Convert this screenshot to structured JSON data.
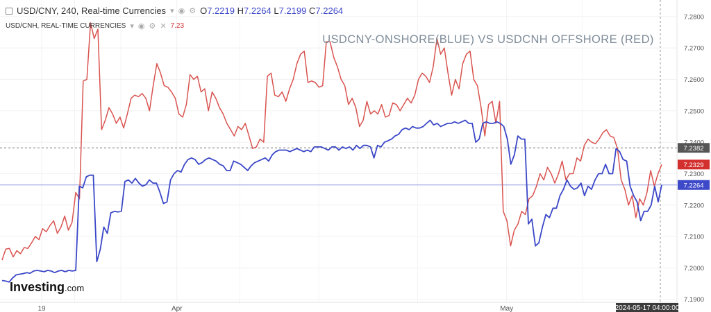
{
  "header": {
    "symbol_line": "USD/CNY, 240, Real-time Currencies",
    "ohlc": {
      "o_label": "O",
      "o": "7.2219",
      "h_label": "H",
      "h": "7.2264",
      "l_label": "L",
      "l": "7.2199",
      "c_label": "C",
      "c": "7.2264"
    },
    "overlay_label": "USD/CNH, REAL-TIME CURRENCIES",
    "overlay_value": "7.23"
  },
  "logo": {
    "brand": "Investing",
    "suffix": ".com"
  },
  "chart_data": {
    "type": "line",
    "title": "USDCNY-ONSHORE(BLUE) VS USDCNH OFFSHORE (RED)",
    "x_tick_labels": [
      {
        "label": "19",
        "pos": 0.06
      },
      {
        "label": "Apr",
        "pos": 0.265
      },
      {
        "label": "May",
        "pos": 0.765
      }
    ],
    "time_readout": "2024-05-17 04:00:00",
    "y_axis": {
      "ylim": [
        7.1895,
        7.2835
      ],
      "ticks": [
        7.19,
        7.2,
        7.21,
        7.22,
        7.23,
        7.24,
        7.25,
        7.26,
        7.27,
        7.28
      ],
      "position": "right"
    },
    "price_markers": [
      {
        "label": "7.2382",
        "value": 7.2382,
        "color": "#555555",
        "dashed": true
      },
      {
        "label": "7.2329",
        "value": 7.2329,
        "color": "#d32f2f",
        "dashed": false
      },
      {
        "label": "7.2264",
        "value": 7.2264,
        "color": "#3d49c9",
        "dashed": false
      }
    ],
    "series": [
      {
        "color": "#d9534f",
        "values": [
          7.2025,
          7.206,
          7.2062,
          7.2035,
          7.2055,
          7.2045,
          7.2065,
          7.2062,
          7.208,
          7.21,
          7.209,
          7.2125,
          7.2115,
          7.2135,
          7.215,
          7.211,
          7.213,
          7.2165,
          7.212,
          7.2145,
          7.224,
          7.222,
          7.2595,
          7.26,
          7.278,
          7.273,
          7.276,
          7.244,
          7.247,
          7.251,
          7.249,
          7.246,
          7.248,
          7.2445,
          7.249,
          7.254,
          7.255,
          7.2545,
          7.2555,
          7.254,
          7.25,
          7.258,
          7.265,
          7.262,
          7.258,
          7.2575,
          7.256,
          7.254,
          7.249,
          7.248,
          7.252,
          7.2615,
          7.26,
          7.261,
          7.256,
          7.257,
          7.25,
          7.256,
          7.254,
          7.251,
          7.249,
          7.246,
          7.244,
          7.242,
          7.245,
          7.244,
          7.246,
          7.242,
          7.238,
          7.2385,
          7.241,
          7.24,
          7.261,
          7.262,
          7.255,
          7.2545,
          7.256,
          7.253,
          7.257,
          7.26,
          7.265,
          7.268,
          7.269,
          7.259,
          7.2595,
          7.259,
          7.2575,
          7.258,
          7.272,
          7.272,
          7.267,
          7.264,
          7.26,
          7.258,
          7.252,
          7.254,
          7.251,
          7.245,
          7.247,
          7.253,
          7.249,
          7.25,
          7.249,
          7.252,
          7.248,
          7.2485,
          7.2525,
          7.252,
          7.25,
          7.252,
          7.254,
          7.2525,
          7.255,
          7.26,
          7.262,
          7.261,
          7.259,
          7.264,
          7.273,
          7.268,
          7.27,
          7.262,
          7.255,
          7.26,
          7.257,
          7.265,
          7.268,
          7.269,
          7.26,
          7.258,
          7.251,
          7.242,
          7.252,
          7.253,
          7.246,
          7.253,
          7.218,
          7.215,
          7.207,
          7.212,
          7.214,
          7.218,
          7.217,
          7.222,
          7.223,
          7.226,
          7.23,
          7.228,
          7.232,
          7.23,
          7.227,
          7.23,
          7.234,
          7.228,
          7.23,
          7.23,
          7.235,
          7.234,
          7.239,
          7.241,
          7.24,
          7.2395,
          7.241,
          7.243,
          7.244,
          7.242,
          7.2415,
          7.238,
          7.228,
          7.225,
          7.22,
          7.223,
          7.216,
          7.222,
          7.22,
          7.224,
          7.231,
          7.226,
          7.23,
          7.2329
        ]
      },
      {
        "color": "#3a47c7",
        "values": [
          7.196,
          7.1958,
          7.1955,
          7.1968,
          7.1978,
          7.198,
          7.1982,
          7.1985,
          7.1983,
          7.199,
          7.1992,
          7.199,
          7.1988,
          7.1992,
          7.199,
          7.1985,
          7.199,
          7.1992,
          7.1988,
          7.1992,
          7.199,
          7.1992,
          7.226,
          7.2255,
          7.229,
          7.2295,
          7.2295,
          7.202,
          7.206,
          7.213,
          7.211,
          7.2175,
          7.218,
          7.2178,
          7.218,
          7.2275,
          7.228,
          7.227,
          7.2285,
          7.227,
          7.226,
          7.2265,
          7.228,
          7.227,
          7.227,
          7.224,
          7.2205,
          7.221,
          7.228,
          7.23,
          7.231,
          7.2305,
          7.233,
          7.2345,
          7.235,
          7.2345,
          7.233,
          7.2335,
          7.2345,
          7.235,
          7.2345,
          7.234,
          7.233,
          7.2325,
          7.231,
          7.231,
          7.234,
          7.2335,
          7.233,
          7.232,
          7.231,
          7.2325,
          7.2335,
          7.234,
          7.2345,
          7.235,
          7.234,
          7.236,
          7.237,
          7.2375,
          7.2375,
          7.2375,
          7.237,
          7.2375,
          7.238,
          7.2375,
          7.237,
          7.2375,
          7.237,
          7.2385,
          7.2385,
          7.2385,
          7.238,
          7.2375,
          7.2385,
          7.2385,
          7.2375,
          7.2385,
          7.238,
          7.2385,
          7.2375,
          7.239,
          7.238,
          7.239,
          7.239,
          7.2385,
          7.235,
          7.239,
          7.2385,
          7.24,
          7.2405,
          7.241,
          7.242,
          7.2425,
          7.244,
          7.2445,
          7.244,
          7.245,
          7.2445,
          7.2445,
          7.245,
          7.246,
          7.247,
          7.2455,
          7.246,
          7.245,
          7.2455,
          7.246,
          7.246,
          7.2465,
          7.246,
          7.2465,
          7.247,
          7.246,
          7.246,
          7.24,
          7.241,
          7.246,
          7.2465,
          7.246,
          7.246,
          7.2465,
          7.246,
          7.245,
          7.241,
          7.233,
          7.236,
          7.242,
          7.241,
          7.241,
          7.214,
          7.2155,
          7.207,
          7.208,
          7.213,
          7.217,
          7.216,
          7.219,
          7.219,
          7.223,
          7.225,
          7.228,
          7.226,
          7.225,
          7.2255,
          7.227,
          7.223,
          7.226,
          7.225,
          7.228,
          7.23,
          7.23,
          7.233,
          7.23,
          7.23,
          7.238,
          7.237,
          7.2345,
          7.234,
          7.226,
          7.223,
          7.221,
          7.215,
          7.218,
          7.218,
          7.22,
          7.226,
          7.221,
          7.2264
        ]
      }
    ]
  }
}
